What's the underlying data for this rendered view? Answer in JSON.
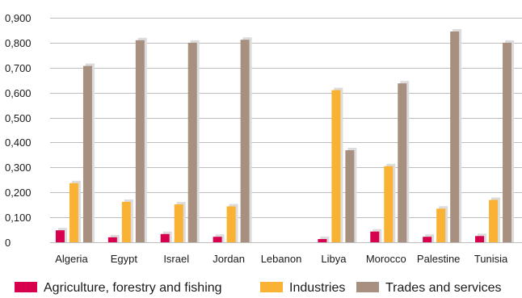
{
  "chart_data": {
    "type": "bar",
    "categories": [
      "Algeria",
      "Egypt",
      "Israel",
      "Jordan",
      "Lebanon",
      "Libya",
      "Morocco",
      "Palestine",
      "Tunisia"
    ],
    "series": [
      {
        "name": "Agriculture, forestry and fishing",
        "color": "#d6004f",
        "values": [
          0.048,
          0.02,
          0.033,
          0.022,
          0,
          0.013,
          0.043,
          0.022,
          0.025
        ]
      },
      {
        "name": "Industries",
        "color": "#f9b233",
        "values": [
          0.237,
          0.162,
          0.152,
          0.144,
          0,
          0.61,
          0.305,
          0.135,
          0.17
        ]
      },
      {
        "name": "Trades and services",
        "color": "#a89080",
        "values": [
          0.707,
          0.81,
          0.8,
          0.812,
          0,
          0.369,
          0.637,
          0.845,
          0.8
        ]
      }
    ],
    "yticks": [
      "0,900",
      "0,800",
      "0,700",
      "0,600",
      "0,500",
      "0,400",
      "0,300",
      "0,200",
      "0,100",
      "0"
    ],
    "ylim": [
      0,
      0.9
    ],
    "grid": true,
    "legend_position": "bottom"
  }
}
